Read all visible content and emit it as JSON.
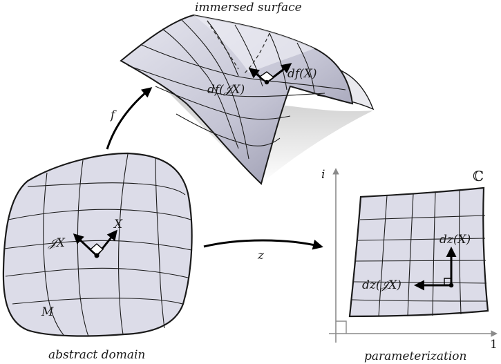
{
  "labels": {
    "immersed_surface": "immersed surface",
    "abstract_domain": "abstract domain",
    "parameterization": "parameterization",
    "map_f": "f",
    "map_z": "z",
    "domain_M": "M",
    "vec_X": "X",
    "vec_JX": "𝒥X",
    "df_X": "df(X)",
    "df_JX": "df(𝒥X)",
    "dz_X": "dz(X)",
    "dz_JX": "dz(𝒥X)",
    "complex_plane": "ℂ",
    "axis_i": "i",
    "axis_one": "1"
  },
  "colors": {
    "surface_fill": "#dcdce8",
    "surface_shade": "#b9b9c9",
    "surface_dark": "#8e8ea3",
    "shadow": "#d0d0d0",
    "stroke": "#1a1a1a",
    "axis": "#8a8a8a"
  }
}
